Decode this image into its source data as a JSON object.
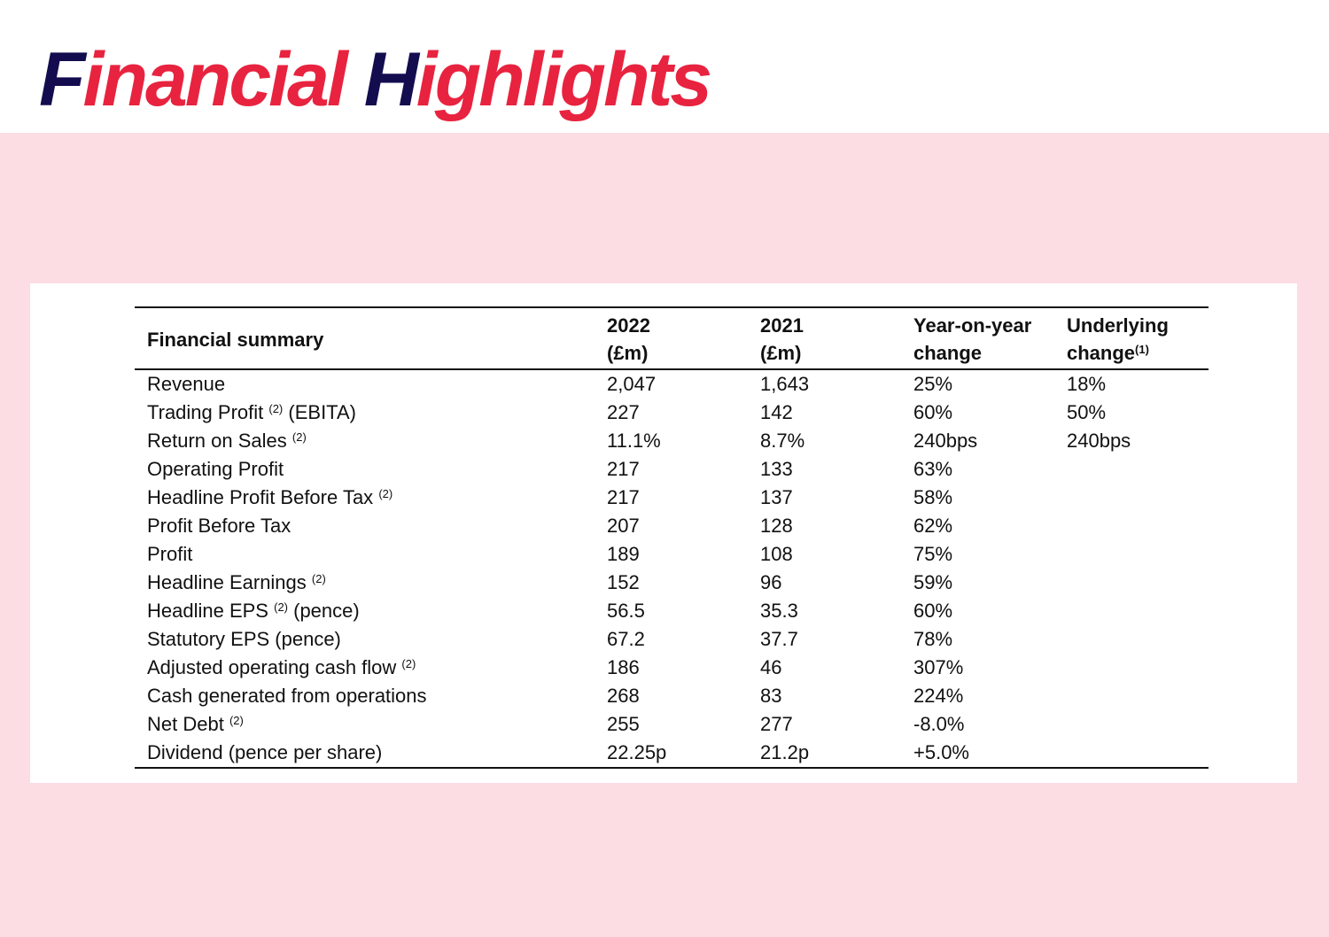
{
  "title": {
    "first_initial": "F",
    "first_rest": "inancial",
    "second_initial": "H",
    "second_rest": "ighlights"
  },
  "colors": {
    "title_red": "#e8233f",
    "title_navy": "#130d4f",
    "background_pink": "#fbdde3"
  },
  "table": {
    "headers": [
      {
        "line1": "Financial summary",
        "line2": "",
        "note": ""
      },
      {
        "line1": "2022",
        "line2": "(£m)",
        "note": ""
      },
      {
        "line1": "2021",
        "line2": "(£m)",
        "note": ""
      },
      {
        "line1": "Year-on-year",
        "line2": "change",
        "note": ""
      },
      {
        "line1": "Underlying",
        "line2": "change",
        "note": "(1)"
      }
    ],
    "rows": [
      {
        "label": "Revenue",
        "note": "",
        "suffix": "",
        "v2022": "2,047",
        "v2021": "1,643",
        "yoy": "25%",
        "underlying": "18%"
      },
      {
        "label": "Trading Profit",
        "note": "(2)",
        "suffix": "(EBITA)",
        "v2022": "227",
        "v2021": "142",
        "yoy": "60%",
        "underlying": "50%"
      },
      {
        "label": "Return on Sales",
        "note": "(2)",
        "suffix": "",
        "v2022": "11.1%",
        "v2021": "8.7%",
        "yoy": "240bps",
        "underlying": "240bps"
      },
      {
        "label": "Operating Profit",
        "note": "",
        "suffix": "",
        "v2022": "217",
        "v2021": "133",
        "yoy": "63%",
        "underlying": ""
      },
      {
        "label": "Headline Profit Before Tax",
        "note": "(2)",
        "suffix": "",
        "v2022": "217",
        "v2021": "137",
        "yoy": "58%",
        "underlying": ""
      },
      {
        "label": "Profit Before Tax",
        "note": "",
        "suffix": "",
        "v2022": "207",
        "v2021": "128",
        "yoy": "62%",
        "underlying": ""
      },
      {
        "label": "Profit",
        "note": "",
        "suffix": "",
        "v2022": "189",
        "v2021": "108",
        "yoy": "75%",
        "underlying": ""
      },
      {
        "label": "Headline Earnings",
        "note": "(2)",
        "suffix": "",
        "v2022": "152",
        "v2021": "96",
        "yoy": "59%",
        "underlying": ""
      },
      {
        "label": "Headline EPS",
        "note": "(2)",
        "suffix": "(pence)",
        "v2022": "56.5",
        "v2021": "35.3",
        "yoy": "60%",
        "underlying": ""
      },
      {
        "label": "Statutory EPS (pence)",
        "note": "",
        "suffix": "",
        "v2022": "67.2",
        "v2021": "37.7",
        "yoy": "78%",
        "underlying": ""
      },
      {
        "label": "Adjusted operating cash flow",
        "note": "(2)",
        "suffix": "",
        "v2022": "186",
        "v2021": "46",
        "yoy": "307%",
        "underlying": ""
      },
      {
        "label": "Cash generated from operations",
        "note": "",
        "suffix": "",
        "v2022": "268",
        "v2021": "83",
        "yoy": "224%",
        "underlying": ""
      },
      {
        "label": "Net Debt",
        "note": "(2)",
        "suffix": "",
        "v2022": "255",
        "v2021": "277",
        "yoy": "-8.0%",
        "underlying": ""
      },
      {
        "label": "Dividend (pence per share)",
        "note": "",
        "suffix": "",
        "v2022": "22.25p",
        "v2021": "21.2p",
        "yoy": "+5.0%",
        "underlying": ""
      }
    ]
  }
}
